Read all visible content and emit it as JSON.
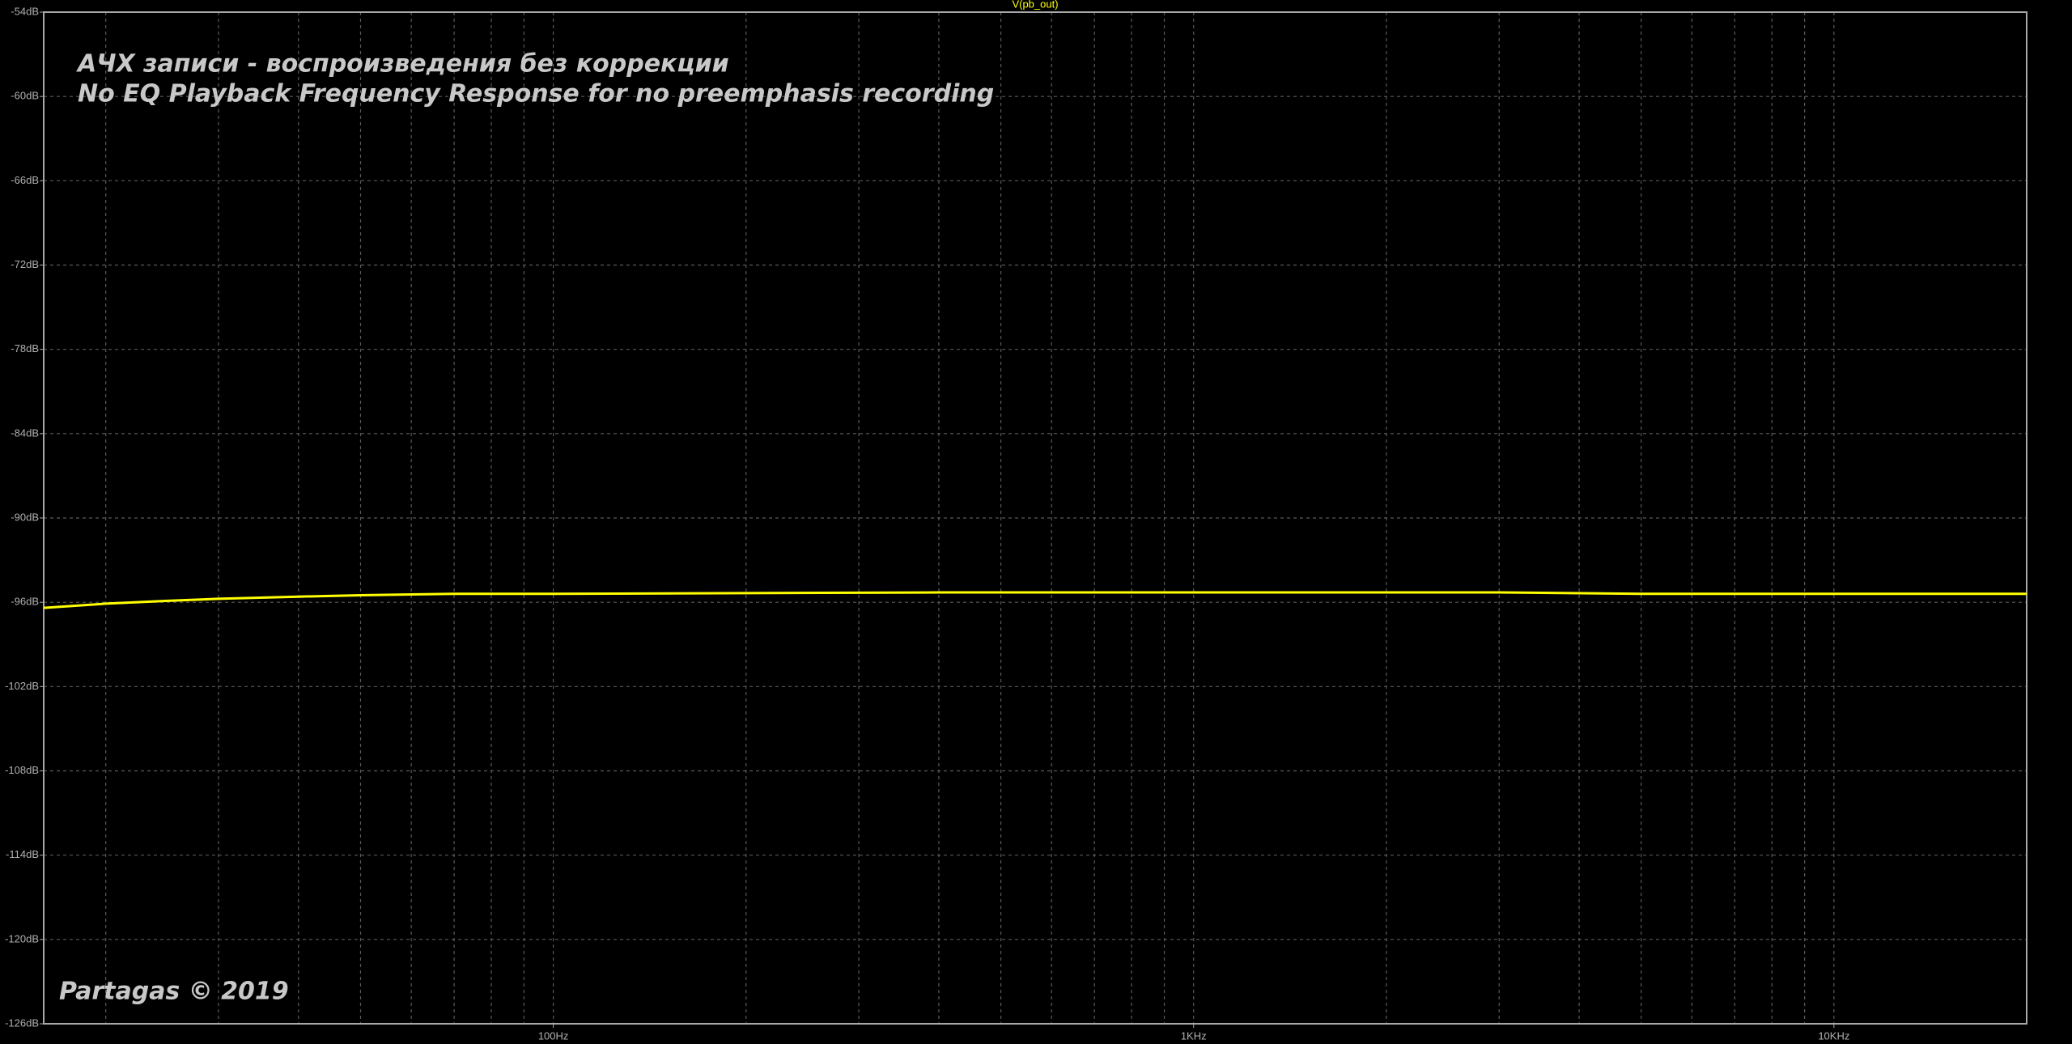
{
  "chart_data": {
    "type": "line",
    "title": "АЧХ записи - воспроизведения без коррекции",
    "subtitle": "No EQ Playback Frequency Response for no preemphasis recording",
    "annotation": "Partagas © 2019",
    "x": [
      16,
      20,
      25,
      30,
      40,
      50,
      70,
      100,
      200,
      400,
      1000,
      3000,
      5000,
      10000,
      20000
    ],
    "series": [
      {
        "name": "V(pb_out)",
        "color": "#ffff00",
        "values": [
          -96.4,
          -96.1,
          -95.9,
          -95.75,
          -95.6,
          -95.5,
          -95.4,
          -95.4,
          -95.35,
          -95.3,
          -95.3,
          -95.3,
          -95.4,
          -95.4,
          -95.4
        ]
      }
    ],
    "xscale": "log",
    "xlim": [
      16,
      20000
    ],
    "xticks": [
      {
        "value": 100,
        "label": "100Hz"
      },
      {
        "value": 1000,
        "label": "1KHz"
      },
      {
        "value": 10000,
        "label": "10KHz"
      }
    ],
    "xminorticks": [
      20,
      30,
      40,
      50,
      60,
      70,
      80,
      90,
      200,
      300,
      400,
      500,
      600,
      700,
      800,
      900,
      2000,
      3000,
      4000,
      5000,
      6000,
      7000,
      8000,
      9000
    ],
    "ylim": [
      -126,
      -54
    ],
    "yticks": [
      {
        "value": -54,
        "label": "-54dB"
      },
      {
        "value": -60,
        "label": "-60dB"
      },
      {
        "value": -66,
        "label": "-66dB"
      },
      {
        "value": -72,
        "label": "-72dB"
      },
      {
        "value": -78,
        "label": "-78dB"
      },
      {
        "value": -84,
        "label": "-84dB"
      },
      {
        "value": -90,
        "label": "-90dB"
      },
      {
        "value": -96,
        "label": "-96dB"
      },
      {
        "value": -102,
        "label": "-102dB"
      },
      {
        "value": -108,
        "label": "-108dB"
      },
      {
        "value": -114,
        "label": "-114dB"
      },
      {
        "value": -120,
        "label": "-120dB"
      },
      {
        "value": -126,
        "label": "-126dB"
      }
    ],
    "grid": true
  }
}
